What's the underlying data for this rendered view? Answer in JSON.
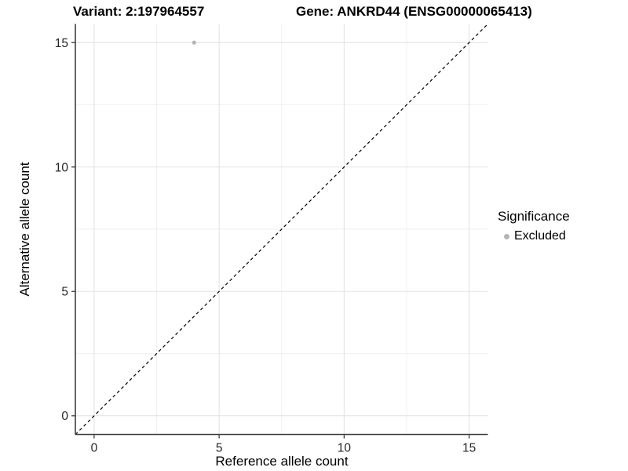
{
  "chart_data": {
    "type": "scatter",
    "title_left": "Variant: 2:197964557",
    "title_right": "Gene: ANKRD44 (ENSG00000065413)",
    "xlabel": "Reference allele count",
    "ylabel": "Alternative allele count",
    "xlim": [
      -0.75,
      15.75
    ],
    "ylim": [
      -0.75,
      15.75
    ],
    "x_ticks": [
      0,
      5,
      10,
      15
    ],
    "y_ticks": [
      0,
      5,
      10,
      15
    ],
    "x_minor_ticks": [
      2.5,
      7.5,
      12.5
    ],
    "y_minor_ticks": [
      2.5,
      7.5,
      12.5
    ],
    "grid": true,
    "points": [
      {
        "x": 4,
        "y": 15,
        "series": "Excluded"
      }
    ],
    "reference_line": {
      "style": "dashed",
      "slope": 1,
      "intercept": 0,
      "color": "#000000"
    },
    "legend": {
      "title": "Significance",
      "position": "right",
      "items": [
        {
          "label": "Excluded",
          "color": "#b5b5b5",
          "marker": "circle"
        }
      ]
    },
    "colors": {
      "point": "#b5b5b5",
      "grid_major": "#e3e3e3",
      "grid_minor": "#efefef",
      "axis_line": "#3d3d3d",
      "tick_mark": "#3d3d3d",
      "tick_label": "#262626",
      "background": "#ffffff"
    }
  }
}
